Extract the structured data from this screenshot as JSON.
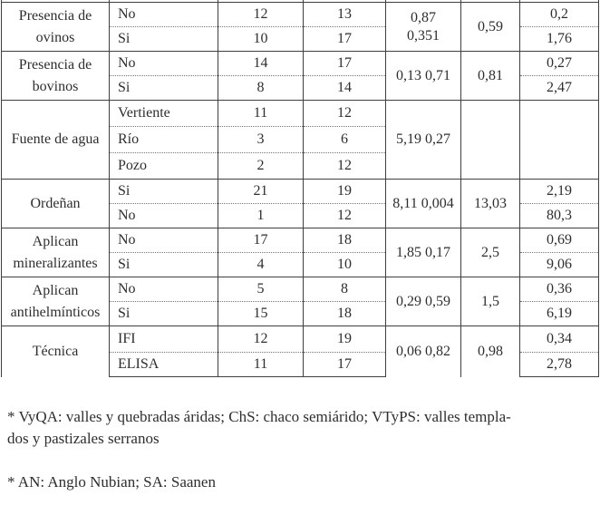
{
  "table": {
    "groups": [
      {
        "variable": "Presencia de\novinos",
        "chi_p": "0,87\n0,351",
        "or": "0,59",
        "rows": [
          {
            "category": "No",
            "n1": "12",
            "n2": "13",
            "ci": "0,2"
          },
          {
            "category": "Si",
            "n1": "10",
            "n2": "17",
            "ci": "1,76"
          }
        ]
      },
      {
        "variable": "Presencia de\nbovinos",
        "chi_p": "0,13  0,71",
        "or": "0,81",
        "rows": [
          {
            "category": "No",
            "n1": "14",
            "n2": "17",
            "ci": "0,27"
          },
          {
            "category": "Si",
            "n1": "8",
            "n2": "14",
            "ci": "2,47"
          }
        ]
      },
      {
        "variable": "Fuente de agua",
        "chi_p": "5,19  0,27",
        "or": "",
        "ci_merged": "",
        "rows": [
          {
            "category": "Vertiente",
            "n1": "11",
            "n2": "12"
          },
          {
            "category": "Río",
            "n1": "3",
            "n2": "6"
          },
          {
            "category": "Pozo",
            "n1": "2",
            "n2": "12"
          }
        ]
      },
      {
        "variable": "Ordeñan",
        "chi_p": "8,11 0,004",
        "or": "13,03",
        "rows": [
          {
            "category": "Si",
            "n1": "21",
            "n2": "19",
            "ci": "2,19"
          },
          {
            "category": "No",
            "n1": "1",
            "n2": "12",
            "ci": "80,3"
          }
        ]
      },
      {
        "variable": "Aplican\nmineralizantes",
        "chi_p": "1,85 0,17",
        "or": "2,5",
        "rows": [
          {
            "category": "No",
            "n1": "17",
            "n2": "18",
            "ci": "0,69"
          },
          {
            "category": "Si",
            "n1": "4",
            "n2": "10",
            "ci": "9,06"
          }
        ]
      },
      {
        "variable": "Aplican\nantihelmínticos",
        "chi_p": "0,29  0,59",
        "or": "1,5",
        "rows": [
          {
            "category": "No",
            "n1": "5",
            "n2": "8",
            "ci": "0,36"
          },
          {
            "category": "Si",
            "n1": "15",
            "n2": "18",
            "ci": "6,19"
          }
        ]
      },
      {
        "variable": "Técnica",
        "chi_p": "0,06 0,82",
        "or": "0,98",
        "rows": [
          {
            "category": "IFI",
            "n1": "12",
            "n2": "19",
            "ci": "0,34"
          },
          {
            "category": "ELISA",
            "n1": "11",
            "n2": "17",
            "ci": "2,78"
          }
        ]
      }
    ]
  },
  "footnotes": {
    "note1": "* VyQA: valles y quebradas áridas; ChS: chaco semiárido; VTyPS: valles templa-\ndos y pastizales serranos",
    "note2": "* AN: Anglo Nubian; SA: Saanen"
  }
}
